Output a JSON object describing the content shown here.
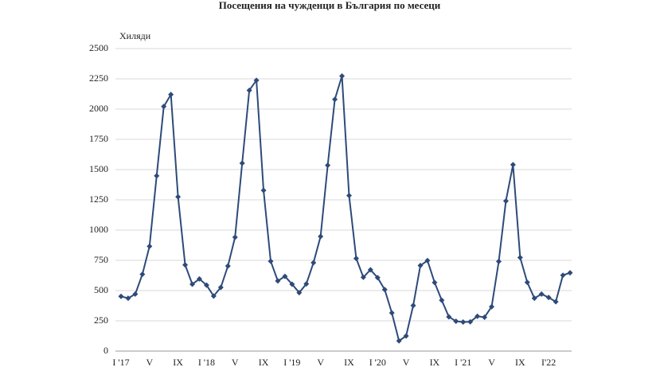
{
  "chart_data": {
    "type": "line",
    "title": "Посещения на чужденци в България по месеци",
    "y_label": "Хиляди",
    "categories": [
      "I '17",
      null,
      null,
      null,
      "V",
      null,
      null,
      null,
      "IX",
      null,
      null,
      null,
      "I '18",
      null,
      null,
      null,
      "V",
      null,
      null,
      null,
      "IX",
      null,
      null,
      null,
      "I '19",
      null,
      null,
      null,
      "V",
      null,
      null,
      null,
      "IX",
      null,
      null,
      null,
      "I '20",
      null,
      null,
      null,
      "V",
      null,
      null,
      null,
      "IX",
      null,
      null,
      null,
      "I '21",
      null,
      null,
      null,
      "V",
      null,
      null,
      null,
      "IX",
      null,
      null,
      null,
      "I'22",
      null,
      null,
      null
    ],
    "series": [
      {
        "color": "#2e4a7a",
        "values": [
          452,
          437,
          471,
          635,
          866,
          1448,
          2021,
          2120,
          1275,
          712,
          553,
          596,
          545,
          455,
          526,
          703,
          941,
          1553,
          2155,
          2238,
          1328,
          743,
          580,
          618,
          553,
          483,
          555,
          730,
          947,
          1535,
          2080,
          2273,
          1285,
          766,
          610,
          672,
          607,
          508,
          316,
          85,
          125,
          377,
          707,
          748,
          567,
          420,
          283,
          247,
          240,
          242,
          288,
          280,
          367,
          741,
          1240,
          1540,
          773,
          568,
          437,
          471,
          443,
          408,
          627,
          647
        ]
      }
    ],
    "ylim": [
      0,
      2500
    ],
    "yticks": [
      0,
      250,
      500,
      750,
      1000,
      1250,
      1500,
      1750,
      2000,
      2250,
      2500
    ],
    "grid": true
  }
}
